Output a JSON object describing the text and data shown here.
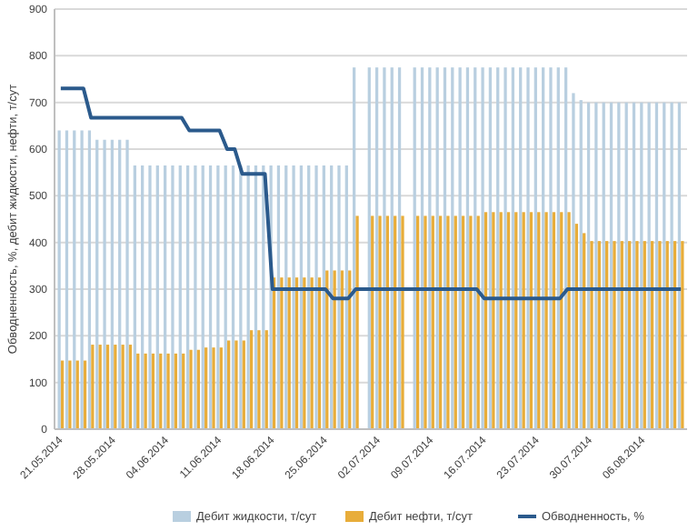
{
  "chart_data": {
    "type": "bar",
    "ylabel": "Обводненность, %, дебит жидкости, нефти, т/сут",
    "categories": [
      "21.05.2014",
      null,
      null,
      null,
      null,
      null,
      null,
      "28.05.2014",
      null,
      null,
      null,
      null,
      null,
      null,
      "04.06.2014",
      null,
      null,
      null,
      null,
      null,
      null,
      "11.06.2014",
      null,
      null,
      null,
      null,
      null,
      null,
      "18.06.2014",
      null,
      null,
      null,
      null,
      null,
      null,
      "25.06.2014",
      null,
      null,
      null,
      null,
      null,
      null,
      "02.07.2014",
      null,
      null,
      null,
      null,
      null,
      null,
      "09.07.2014",
      null,
      null,
      null,
      null,
      null,
      null,
      "16.07.2014",
      null,
      null,
      null,
      null,
      null,
      null,
      "23.07.2014",
      null,
      null,
      null,
      null,
      null,
      null,
      "30.07.2014",
      null,
      null,
      null,
      null,
      null,
      null,
      "06.08.2014",
      null,
      null,
      null,
      null,
      null
    ],
    "series": [
      {
        "name": "Дебит жидкости, т/сут",
        "color": "#b9cfe0",
        "values": [
          640,
          640,
          640,
          640,
          640,
          620,
          620,
          620,
          620,
          620,
          565,
          565,
          565,
          565,
          565,
          565,
          565,
          565,
          565,
          565,
          565,
          565,
          565,
          565,
          565,
          565,
          565,
          565,
          565,
          565,
          565,
          565,
          565,
          565,
          565,
          565,
          565,
          565,
          565,
          775,
          null,
          775,
          775,
          775,
          775,
          775,
          null,
          775,
          775,
          775,
          775,
          775,
          775,
          775,
          775,
          775,
          775,
          775,
          775,
          775,
          775,
          775,
          775,
          775,
          775,
          775,
          775,
          775,
          720,
          705,
          700,
          700,
          700,
          700,
          700,
          700,
          700,
          700,
          700,
          700,
          700,
          700,
          700
        ]
      },
      {
        "name": "Дебит нефти, т/сут",
        "color": "#e8ad3a",
        "values": [
          147,
          147,
          147,
          147,
          181,
          181,
          181,
          181,
          181,
          181,
          162,
          162,
          162,
          162,
          162,
          162,
          162,
          170,
          170,
          175,
          175,
          175,
          190,
          190,
          190,
          212,
          212,
          212,
          325,
          325,
          325,
          325,
          325,
          325,
          325,
          340,
          340,
          340,
          340,
          457,
          null,
          457,
          457,
          457,
          457,
          457,
          null,
          457,
          457,
          457,
          457,
          457,
          457,
          457,
          457,
          457,
          465,
          465,
          465,
          465,
          465,
          465,
          465,
          465,
          465,
          465,
          465,
          465,
          440,
          420,
          403,
          403,
          403,
          403,
          403,
          403,
          403,
          403,
          403,
          403,
          403,
          403,
          403
        ]
      },
      {
        "name": "Обводненность, %",
        "type": "line",
        "color": "#2b5a8c",
        "values": [
          730,
          730,
          730,
          730,
          667,
          667,
          667,
          667,
          667,
          667,
          667,
          667,
          667,
          667,
          667,
          667,
          667,
          640,
          640,
          640,
          640,
          640,
          600,
          600,
          547,
          547,
          547,
          547,
          300,
          300,
          300,
          300,
          300,
          300,
          300,
          300,
          280,
          280,
          280,
          300,
          300,
          300,
          300,
          300,
          300,
          300,
          300,
          300,
          300,
          300,
          300,
          300,
          300,
          300,
          300,
          300,
          280,
          280,
          280,
          280,
          280,
          280,
          280,
          280,
          280,
          280,
          280,
          300,
          300,
          300,
          300,
          300,
          300,
          300,
          300,
          300,
          300,
          300,
          300,
          300,
          300,
          300,
          300
        ]
      }
    ],
    "ylim": [
      0,
      900
    ],
    "yticks": [
      0,
      100,
      200,
      300,
      400,
      500,
      600,
      700,
      800,
      900
    ],
    "grid": "y",
    "legend": "bottom",
    "marker": "none"
  }
}
